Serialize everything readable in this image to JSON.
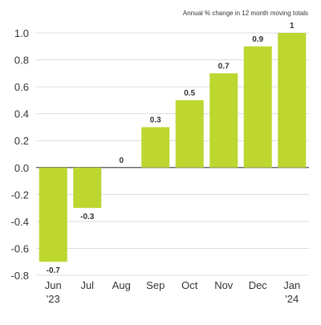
{
  "chart_data": {
    "type": "bar",
    "title": "",
    "subtitle": "Annual % change in 12 month moving totals",
    "xlabel": "",
    "ylabel": "",
    "categories": [
      "Jun '23",
      "Jul",
      "Aug",
      "Sep",
      "Oct",
      "Nov",
      "Dec",
      "Jan '24"
    ],
    "tick_labels": [
      [
        "Jun",
        "'23"
      ],
      [
        "Jul"
      ],
      [
        "Aug"
      ],
      [
        "Sep"
      ],
      [
        "Oct"
      ],
      [
        "Nov"
      ],
      [
        "Dec"
      ],
      [
        "Jan",
        "'24"
      ]
    ],
    "values": [
      -0.7,
      -0.3,
      0,
      0.3,
      0.5,
      0.7,
      0.9,
      1
    ],
    "data_labels": [
      "-0.7",
      "-0.3",
      "0",
      "0.3",
      "0.5",
      "0.7",
      "0.9",
      "1"
    ],
    "ylim": [
      -0.8,
      1.0
    ],
    "yticks": [
      1.0,
      0.8,
      0.6,
      0.4,
      0.2,
      0.0,
      -0.2,
      -0.4,
      -0.6,
      -0.8
    ],
    "ytick_labels": [
      "1.0",
      "0.8",
      "0.6",
      "0.4",
      "0.2",
      "0.0",
      "-0.2",
      "-0.4",
      "-0.6",
      "-0.8"
    ],
    "grid": true,
    "bar_color": "#bdd630",
    "grid_color": "#dcdcdc",
    "text_color": "#333333"
  }
}
